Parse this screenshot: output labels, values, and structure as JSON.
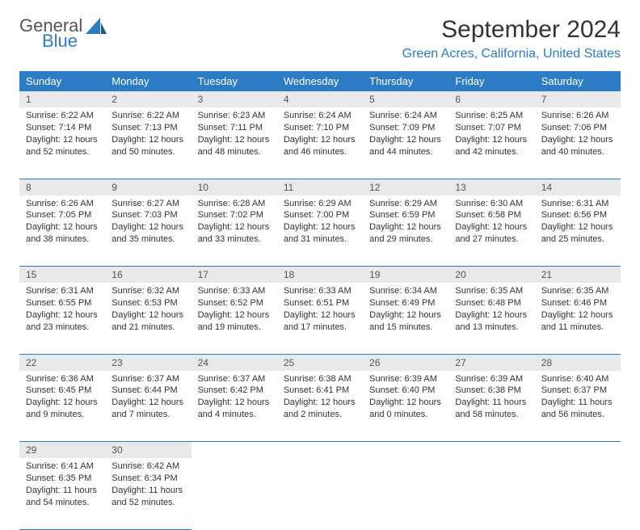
{
  "brand": {
    "word1": "General",
    "word2": "Blue"
  },
  "title": "September 2024",
  "location": "Green Acres, California, United States",
  "colors": {
    "accent": "#2b7cc4",
    "header_bg": "#2b7cc4",
    "header_text": "#ffffff",
    "daynum_bg": "#e9e9e9",
    "text": "#333333",
    "background": "#ffffff"
  },
  "day_headers": [
    "Sunday",
    "Monday",
    "Tuesday",
    "Wednesday",
    "Thursday",
    "Friday",
    "Saturday"
  ],
  "weeks": [
    [
      {
        "n": "1",
        "sunrise": "6:22 AM",
        "sunset": "7:14 PM",
        "dh": "12",
        "dm": "52"
      },
      {
        "n": "2",
        "sunrise": "6:22 AM",
        "sunset": "7:13 PM",
        "dh": "12",
        "dm": "50"
      },
      {
        "n": "3",
        "sunrise": "6:23 AM",
        "sunset": "7:11 PM",
        "dh": "12",
        "dm": "48"
      },
      {
        "n": "4",
        "sunrise": "6:24 AM",
        "sunset": "7:10 PM",
        "dh": "12",
        "dm": "46"
      },
      {
        "n": "5",
        "sunrise": "6:24 AM",
        "sunset": "7:09 PM",
        "dh": "12",
        "dm": "44"
      },
      {
        "n": "6",
        "sunrise": "6:25 AM",
        "sunset": "7:07 PM",
        "dh": "12",
        "dm": "42"
      },
      {
        "n": "7",
        "sunrise": "6:26 AM",
        "sunset": "7:06 PM",
        "dh": "12",
        "dm": "40"
      }
    ],
    [
      {
        "n": "8",
        "sunrise": "6:26 AM",
        "sunset": "7:05 PM",
        "dh": "12",
        "dm": "38"
      },
      {
        "n": "9",
        "sunrise": "6:27 AM",
        "sunset": "7:03 PM",
        "dh": "12",
        "dm": "35"
      },
      {
        "n": "10",
        "sunrise": "6:28 AM",
        "sunset": "7:02 PM",
        "dh": "12",
        "dm": "33"
      },
      {
        "n": "11",
        "sunrise": "6:29 AM",
        "sunset": "7:00 PM",
        "dh": "12",
        "dm": "31"
      },
      {
        "n": "12",
        "sunrise": "6:29 AM",
        "sunset": "6:59 PM",
        "dh": "12",
        "dm": "29"
      },
      {
        "n": "13",
        "sunrise": "6:30 AM",
        "sunset": "6:58 PM",
        "dh": "12",
        "dm": "27"
      },
      {
        "n": "14",
        "sunrise": "6:31 AM",
        "sunset": "6:56 PM",
        "dh": "12",
        "dm": "25"
      }
    ],
    [
      {
        "n": "15",
        "sunrise": "6:31 AM",
        "sunset": "6:55 PM",
        "dh": "12",
        "dm": "23"
      },
      {
        "n": "16",
        "sunrise": "6:32 AM",
        "sunset": "6:53 PM",
        "dh": "12",
        "dm": "21"
      },
      {
        "n": "17",
        "sunrise": "6:33 AM",
        "sunset": "6:52 PM",
        "dh": "12",
        "dm": "19"
      },
      {
        "n": "18",
        "sunrise": "6:33 AM",
        "sunset": "6:51 PM",
        "dh": "12",
        "dm": "17"
      },
      {
        "n": "19",
        "sunrise": "6:34 AM",
        "sunset": "6:49 PM",
        "dh": "12",
        "dm": "15"
      },
      {
        "n": "20",
        "sunrise": "6:35 AM",
        "sunset": "6:48 PM",
        "dh": "12",
        "dm": "13"
      },
      {
        "n": "21",
        "sunrise": "6:35 AM",
        "sunset": "6:46 PM",
        "dh": "12",
        "dm": "11"
      }
    ],
    [
      {
        "n": "22",
        "sunrise": "6:36 AM",
        "sunset": "6:45 PM",
        "dh": "12",
        "dm": "9"
      },
      {
        "n": "23",
        "sunrise": "6:37 AM",
        "sunset": "6:44 PM",
        "dh": "12",
        "dm": "7"
      },
      {
        "n": "24",
        "sunrise": "6:37 AM",
        "sunset": "6:42 PM",
        "dh": "12",
        "dm": "4"
      },
      {
        "n": "25",
        "sunrise": "6:38 AM",
        "sunset": "6:41 PM",
        "dh": "12",
        "dm": "2"
      },
      {
        "n": "26",
        "sunrise": "6:39 AM",
        "sunset": "6:40 PM",
        "dh": "12",
        "dm": "0"
      },
      {
        "n": "27",
        "sunrise": "6:39 AM",
        "sunset": "6:38 PM",
        "dh": "11",
        "dm": "58"
      },
      {
        "n": "28",
        "sunrise": "6:40 AM",
        "sunset": "6:37 PM",
        "dh": "11",
        "dm": "56"
      }
    ],
    [
      {
        "n": "29",
        "sunrise": "6:41 AM",
        "sunset": "6:35 PM",
        "dh": "11",
        "dm": "54"
      },
      {
        "n": "30",
        "sunrise": "6:42 AM",
        "sunset": "6:34 PM",
        "dh": "11",
        "dm": "52"
      },
      null,
      null,
      null,
      null,
      null
    ]
  ],
  "labels": {
    "sunrise": "Sunrise:",
    "sunset": "Sunset:",
    "daylight_prefix": "Daylight:",
    "hours_word": "hours",
    "and_word": "and",
    "minutes_word": "minutes."
  }
}
